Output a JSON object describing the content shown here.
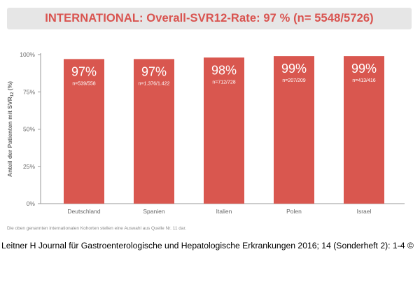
{
  "title": "INTERNATIONAL: Overall-SVR12-Rate: 97 % (n= 5548/5726)",
  "footnote": "Die oben genannten internationalen Kohorten stellen eine Auswahl aus Quelle Nr. 11 dar.",
  "citation": "Leitner H Journal für Gastroenterologische und Hepatologische Erkrankungen 2016; 14 (Sonderheft 2): 1-4 ©",
  "colors": {
    "bar": "#d9574f",
    "title": "#d9534f",
    "title_background": "#e6e6e6",
    "axis_text": "#666666",
    "gridline": "#d0d0d0"
  },
  "chart_data": {
    "type": "bar",
    "categories": [
      "Deutschland",
      "Spanien",
      "Italien",
      "Polen",
      "Israel"
    ],
    "values": [
      97,
      97,
      98,
      99,
      99
    ],
    "value_labels": [
      "97%",
      "97%",
      "98%",
      "99%",
      "99%"
    ],
    "n_labels": [
      "n=539/558",
      "n=1.376/1.422",
      "n=712/728",
      "n=207/209",
      "n=413/416"
    ],
    "ylabel_main": "Anteil der Patienten mit SVR",
    "ylabel_subscript": "12",
    "ylabel_suffix": " (%)",
    "yticks": [
      0,
      25,
      50,
      75,
      100
    ],
    "ytick_labels": [
      "0%",
      "25%",
      "50%",
      "75%",
      "100%"
    ],
    "ylim": [
      0,
      100
    ],
    "grid": false
  }
}
